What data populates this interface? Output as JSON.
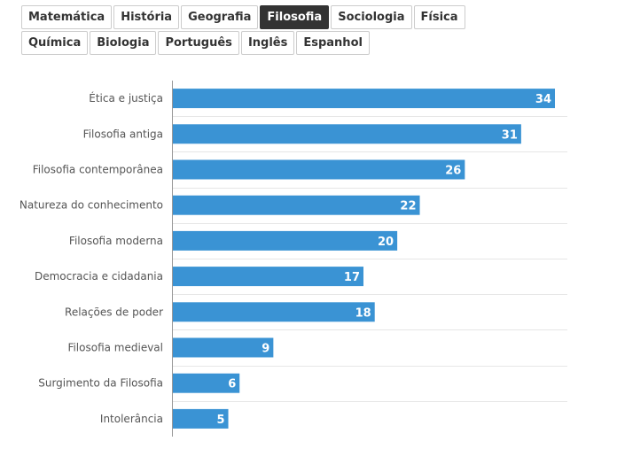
{
  "tabs": [
    {
      "label": "Matemática",
      "active": false
    },
    {
      "label": "História",
      "active": false
    },
    {
      "label": "Geografia",
      "active": false
    },
    {
      "label": "Filosofia",
      "active": true
    },
    {
      "label": "Sociologia",
      "active": false
    },
    {
      "label": "Física",
      "active": false
    },
    {
      "label": "Química",
      "active": false
    },
    {
      "label": "Biologia",
      "active": false
    },
    {
      "label": "Português",
      "active": false
    },
    {
      "label": "Inglês",
      "active": false
    },
    {
      "label": "Espanhol",
      "active": false
    }
  ],
  "colors": {
    "bar": "#3a93d4",
    "active_tab": "#333333",
    "gridline": "#e6e6e6"
  },
  "chart_data": {
    "type": "bar",
    "orientation": "horizontal",
    "title": "",
    "xlabel": "",
    "ylabel": "",
    "grid": true,
    "xlim": [
      0,
      34
    ],
    "categories": [
      "Ética e justiça",
      "Filosofia antiga",
      "Filosofia contemporânea",
      "Natureza do conhecimento",
      "Filosofia moderna",
      "Democracia e cidadania",
      "Relações de poder",
      "Filosofia medieval",
      "Surgimento da Filosofia",
      "Intolerância"
    ],
    "values": [
      34,
      31,
      26,
      22,
      20,
      17,
      18,
      9,
      6,
      5
    ]
  }
}
